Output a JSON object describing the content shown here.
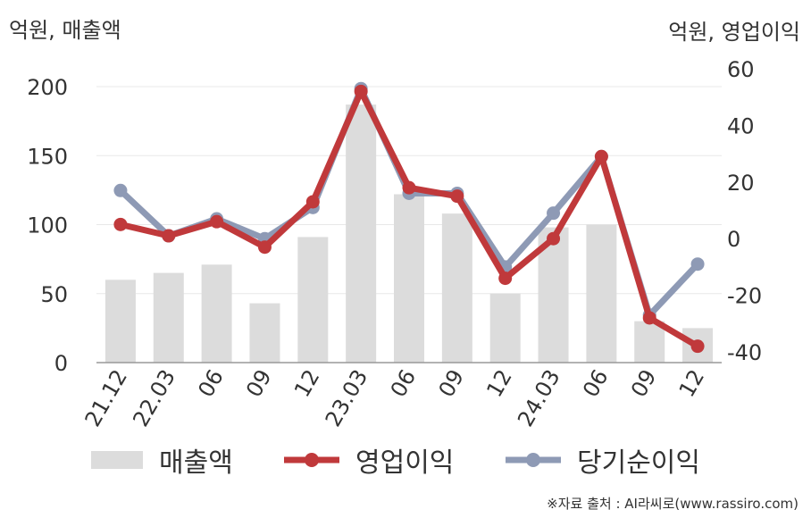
{
  "left_unit": "억원, 매출액",
  "right_unit": "억원, 영업이익",
  "source": "※자료 출처 : AI라씨로(www.rassiro.com)",
  "colors": {
    "bar": "#dcdcdc",
    "op_profit": "#c0393b",
    "net_profit": "#8e9ab5",
    "axis": "#999999",
    "grid": "#e8e8e8"
  },
  "chart_data": {
    "type": "bar+line",
    "categories": [
      "21.12",
      "22.03",
      "06",
      "09",
      "12",
      "23.03",
      "06",
      "09",
      "12",
      "24.03",
      "06",
      "09",
      "12"
    ],
    "left_axis": {
      "ylim": [
        0,
        200
      ],
      "ticks": [
        0,
        50,
        100,
        150,
        200
      ]
    },
    "right_axis": {
      "ylim": [
        -40,
        60
      ],
      "ticks": [
        -40,
        -20,
        0,
        20,
        40,
        60
      ]
    },
    "series": [
      {
        "name": "매출액",
        "kind": "bar",
        "axis": "left",
        "values": [
          60,
          65,
          71,
          43,
          91,
          187,
          122,
          108,
          50,
          98,
          100,
          30,
          25
        ]
      },
      {
        "name": "영업이익",
        "kind": "line",
        "axis": "right",
        "values": [
          5,
          1,
          6,
          -3,
          13,
          52,
          18,
          15,
          -14,
          0,
          29,
          -28,
          -38
        ]
      },
      {
        "name": "당기순이익",
        "kind": "line",
        "axis": "right",
        "values": [
          17,
          1,
          7,
          0,
          11,
          53,
          16,
          16,
          -10,
          9,
          29,
          -27,
          -9
        ]
      }
    ],
    "grid": true,
    "legend_position": "bottom"
  }
}
